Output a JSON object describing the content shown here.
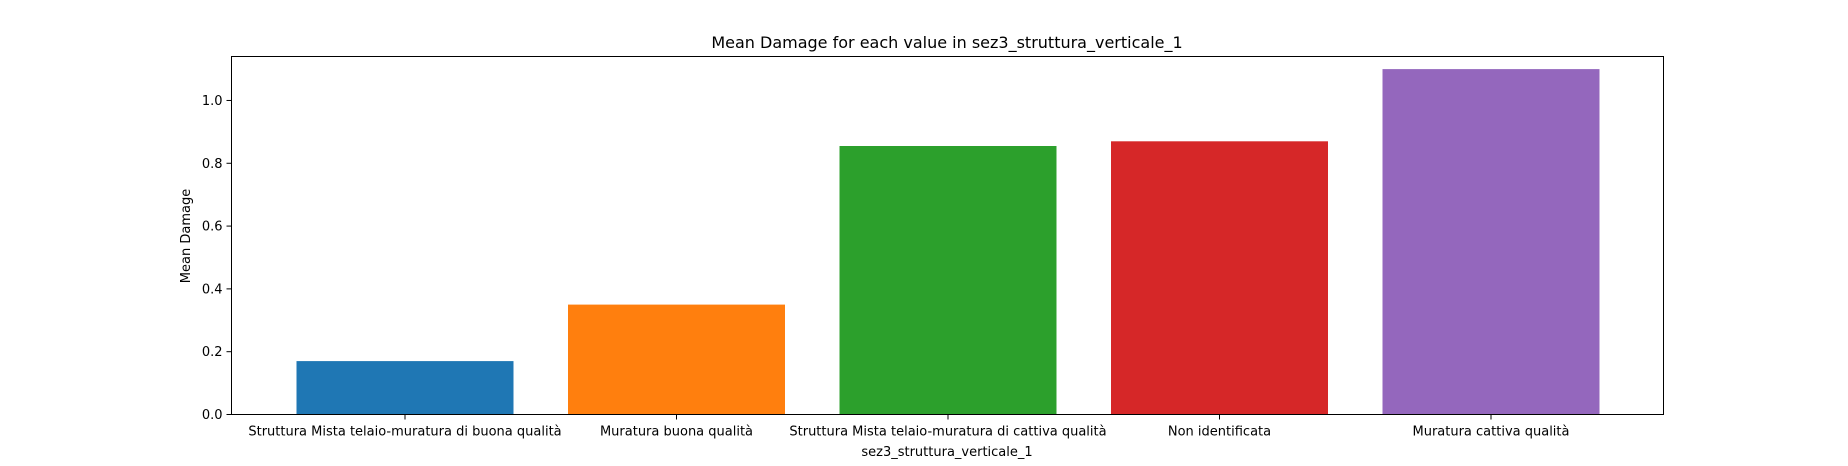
{
  "chart_data": {
    "type": "bar",
    "title": "Mean Damage for each value in sez3_struttura_verticale_1",
    "xlabel": "sez3_struttura_verticale_1",
    "ylabel": "Mean Damage",
    "categories": [
      "Struttura Mista telaio-muratura di buona qualità",
      "Muratura buona qualità",
      "Struttura Mista telaio-muratura di cattiva qualità",
      "Non identificata",
      "Muratura cattiva qualità"
    ],
    "values": [
      0.17,
      0.35,
      0.855,
      0.87,
      1.1
    ],
    "colors": [
      "#1f77b4",
      "#ff7f0e",
      "#2ca02c",
      "#d62728",
      "#9467bd"
    ],
    "ylim": [
      0,
      1.14
    ],
    "yticks": [
      "0.0",
      "0.2",
      "0.4",
      "0.6",
      "0.8",
      "1.0"
    ],
    "grid": false
  }
}
